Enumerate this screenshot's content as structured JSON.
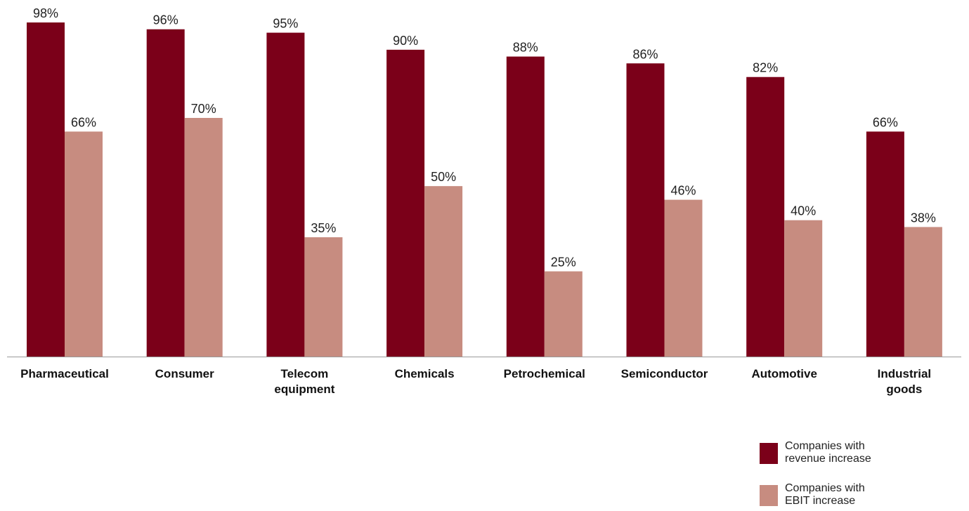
{
  "chart_data": {
    "type": "bar",
    "title": "",
    "xlabel": "",
    "ylabel": "",
    "ylim": [
      0,
      100
    ],
    "grid": false,
    "value_suffix": "%",
    "legend_position": "bottom-right",
    "categories": [
      [
        "Pharmaceutical"
      ],
      [
        "Consumer"
      ],
      [
        "Telecom",
        "equipment"
      ],
      [
        "Chemicals"
      ],
      [
        "Petrochemical"
      ],
      [
        "Semiconductor"
      ],
      [
        "Automotive"
      ],
      [
        "Industrial",
        "goods"
      ]
    ],
    "series": [
      {
        "name": [
          "Companies with",
          "revenue increase"
        ],
        "color": "#7b0019",
        "values": [
          98,
          96,
          95,
          90,
          88,
          86,
          82,
          66
        ]
      },
      {
        "name": [
          "Companies with",
          "EBIT increase"
        ],
        "color": "#c78c80",
        "values": [
          66,
          70,
          35,
          50,
          25,
          46,
          40,
          38
        ]
      }
    ]
  }
}
